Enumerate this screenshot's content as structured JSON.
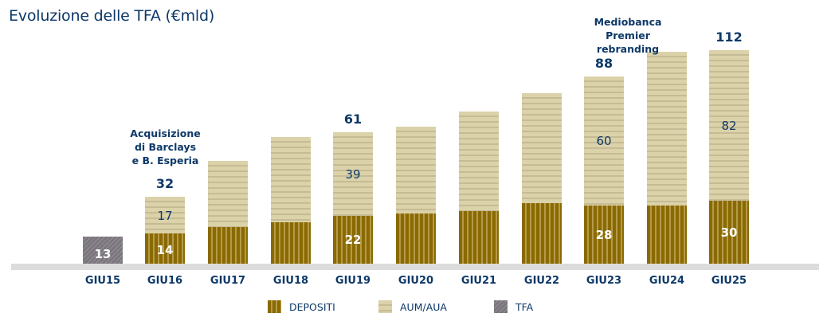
{
  "title": "Evoluzione delle TFA (€mld)",
  "colors": {
    "title": "#0d3868",
    "depositi": "#8a6a00",
    "aum_aua": "#dcd2a9",
    "tfa": "#7b767d",
    "axis": "#dcdcdc"
  },
  "annotations": {
    "acquisition": "Acquisizione di Barclays e B. Esperia",
    "acquisition_lines": [
      "Acquisizione",
      "di Barclays",
      "e B. Esperia"
    ],
    "rebranding": "Mediobanca Premier rebranding",
    "rebranding_lines": [
      "Mediobanca Premier",
      "rebranding"
    ]
  },
  "legend": [
    {
      "key": "depositi",
      "label": "DEPOSITI"
    },
    {
      "key": "aum_aua",
      "label": "AUM/AUA"
    },
    {
      "key": "tfa",
      "label": "TFA"
    }
  ],
  "bars": [
    {
      "x": "GIU15",
      "tfa_label": "13"
    },
    {
      "x": "GIU16",
      "total_label": "32",
      "aum_label": "17",
      "dep_label": "14"
    },
    {
      "x": "GIU17"
    },
    {
      "x": "GIU18"
    },
    {
      "x": "GIU19",
      "total_label": "61",
      "aum_label": "39",
      "dep_label": "22"
    },
    {
      "x": "GIU20"
    },
    {
      "x": "GIU21"
    },
    {
      "x": "GIU22"
    },
    {
      "x": "GIU23",
      "total_label": "88",
      "aum_label": "60",
      "dep_label": "28"
    },
    {
      "x": "GIU24"
    },
    {
      "x": "GIU25",
      "total_label": "112",
      "aum_label": "82",
      "dep_label": "30"
    }
  ],
  "chart_data": {
    "type": "bar",
    "stacked": true,
    "title": "Evoluzione delle TFA (€mld)",
    "xlabel": "",
    "ylabel": "€mld",
    "categories": [
      "GIU15",
      "GIU16",
      "GIU17",
      "GIU18",
      "GIU19",
      "GIU20",
      "GIU21",
      "GIU22",
      "GIU23",
      "GIU24",
      "GIU25"
    ],
    "series": [
      {
        "name": "TFA",
        "values": [
          13,
          null,
          null,
          null,
          null,
          null,
          null,
          null,
          null,
          null,
          null
        ]
      },
      {
        "name": "DEPOSITI",
        "values": [
          null,
          14,
          19,
          22,
          22,
          26,
          27,
          31,
          28,
          29,
          30
        ]
      },
      {
        "name": "AUM/AUA",
        "values": [
          null,
          17,
          35,
          44,
          39,
          46,
          53,
          58,
          60,
          82,
          82
        ]
      }
    ],
    "totals": [
      13,
      32,
      54,
      66,
      61,
      72,
      80,
      89,
      88,
      111,
      112
    ],
    "labeled_values": {
      "GIU15": {
        "TFA": 13
      },
      "GIU16": {
        "DEPOSITI": 14,
        "AUM/AUA": 17,
        "total": 32
      },
      "GIU19": {
        "DEPOSITI": 22,
        "AUM/AUA": 39,
        "total": 61
      },
      "GIU23": {
        "DEPOSITI": 28,
        "AUM/AUA": 60,
        "total": 88
      },
      "GIU25": {
        "DEPOSITI": 30,
        "AUM/AUA": 82,
        "total": 112
      }
    },
    "annotations": [
      {
        "at": "GIU16",
        "text": "Acquisizione di Barclays e B. Esperia"
      },
      {
        "at": "GIU23",
        "text": "Mediobanca Premier rebranding"
      }
    ],
    "legend": [
      "DEPOSITI",
      "AUM/AUA",
      "TFA"
    ],
    "legend_position": "bottom",
    "grid": false,
    "y_axis_visible": false
  }
}
